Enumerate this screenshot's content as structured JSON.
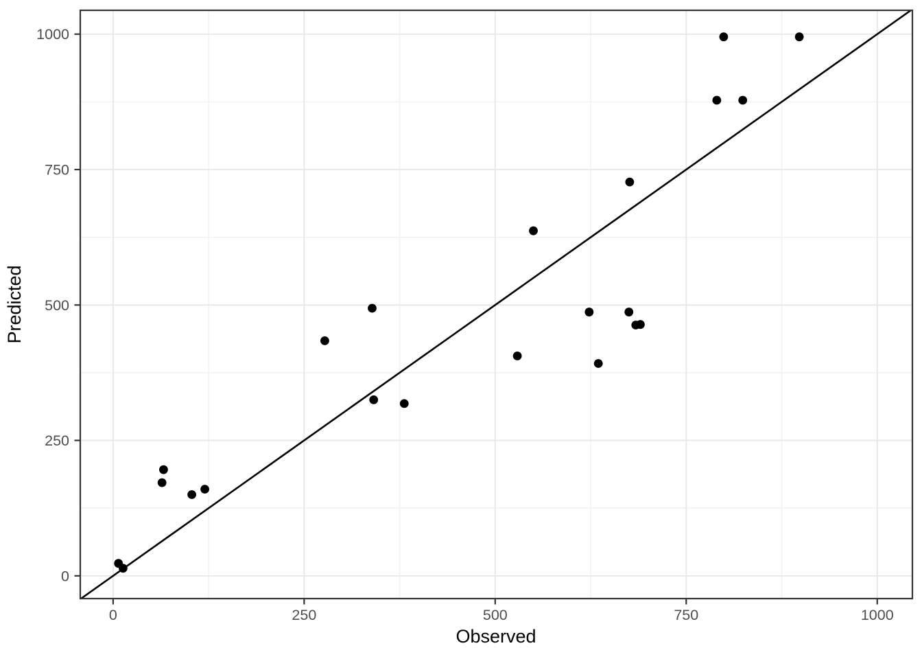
{
  "chart_data": {
    "type": "scatter",
    "title": "",
    "xlabel": "Observed",
    "ylabel": "Predicted",
    "xlim": [
      -43,
      1046
    ],
    "ylim": [
      -42,
      1044
    ],
    "x_ticks": [
      0,
      250,
      500,
      750,
      1000
    ],
    "y_ticks": [
      0,
      250,
      500,
      750,
      1000
    ],
    "x_minor_ticks": [
      125,
      375,
      625,
      875
    ],
    "y_minor_ticks": [
      125,
      375,
      625,
      875
    ],
    "grid": "major and minor gridlines on, white panel, dark border (ggplot theme_bw style)",
    "legend": "none",
    "reference_line": {
      "type": "identity",
      "slope": 1,
      "intercept": 0,
      "style": "solid"
    },
    "points": [
      {
        "observed": 7,
        "predicted": 23
      },
      {
        "observed": 13,
        "predicted": 14
      },
      {
        "observed": 64,
        "predicted": 172
      },
      {
        "observed": 66,
        "predicted": 196
      },
      {
        "observed": 103,
        "predicted": 150
      },
      {
        "observed": 120,
        "predicted": 160
      },
      {
        "observed": 277,
        "predicted": 434
      },
      {
        "observed": 339,
        "predicted": 494
      },
      {
        "observed": 341,
        "predicted": 325
      },
      {
        "observed": 381,
        "predicted": 318
      },
      {
        "observed": 529,
        "predicted": 406
      },
      {
        "observed": 550,
        "predicted": 637
      },
      {
        "observed": 623,
        "predicted": 487
      },
      {
        "observed": 635,
        "predicted": 392
      },
      {
        "observed": 675,
        "predicted": 487
      },
      {
        "observed": 684,
        "predicted": 463
      },
      {
        "observed": 690,
        "predicted": 464
      },
      {
        "observed": 676,
        "predicted": 727
      },
      {
        "observed": 790,
        "predicted": 878
      },
      {
        "observed": 824,
        "predicted": 878
      },
      {
        "observed": 799,
        "predicted": 995
      },
      {
        "observed": 898,
        "predicted": 995
      }
    ],
    "style": {
      "point_color": "#000000",
      "line_color": "#000000",
      "major_grid_color": "#e7e7e7",
      "minor_grid_color": "#f2f2f2",
      "panel_border_color": "#333333",
      "tick_mark_color": "#333333",
      "tick_label_color": "#4d4d4d",
      "axis_title_color": "#000000",
      "background_color": "#ffffff"
    }
  }
}
